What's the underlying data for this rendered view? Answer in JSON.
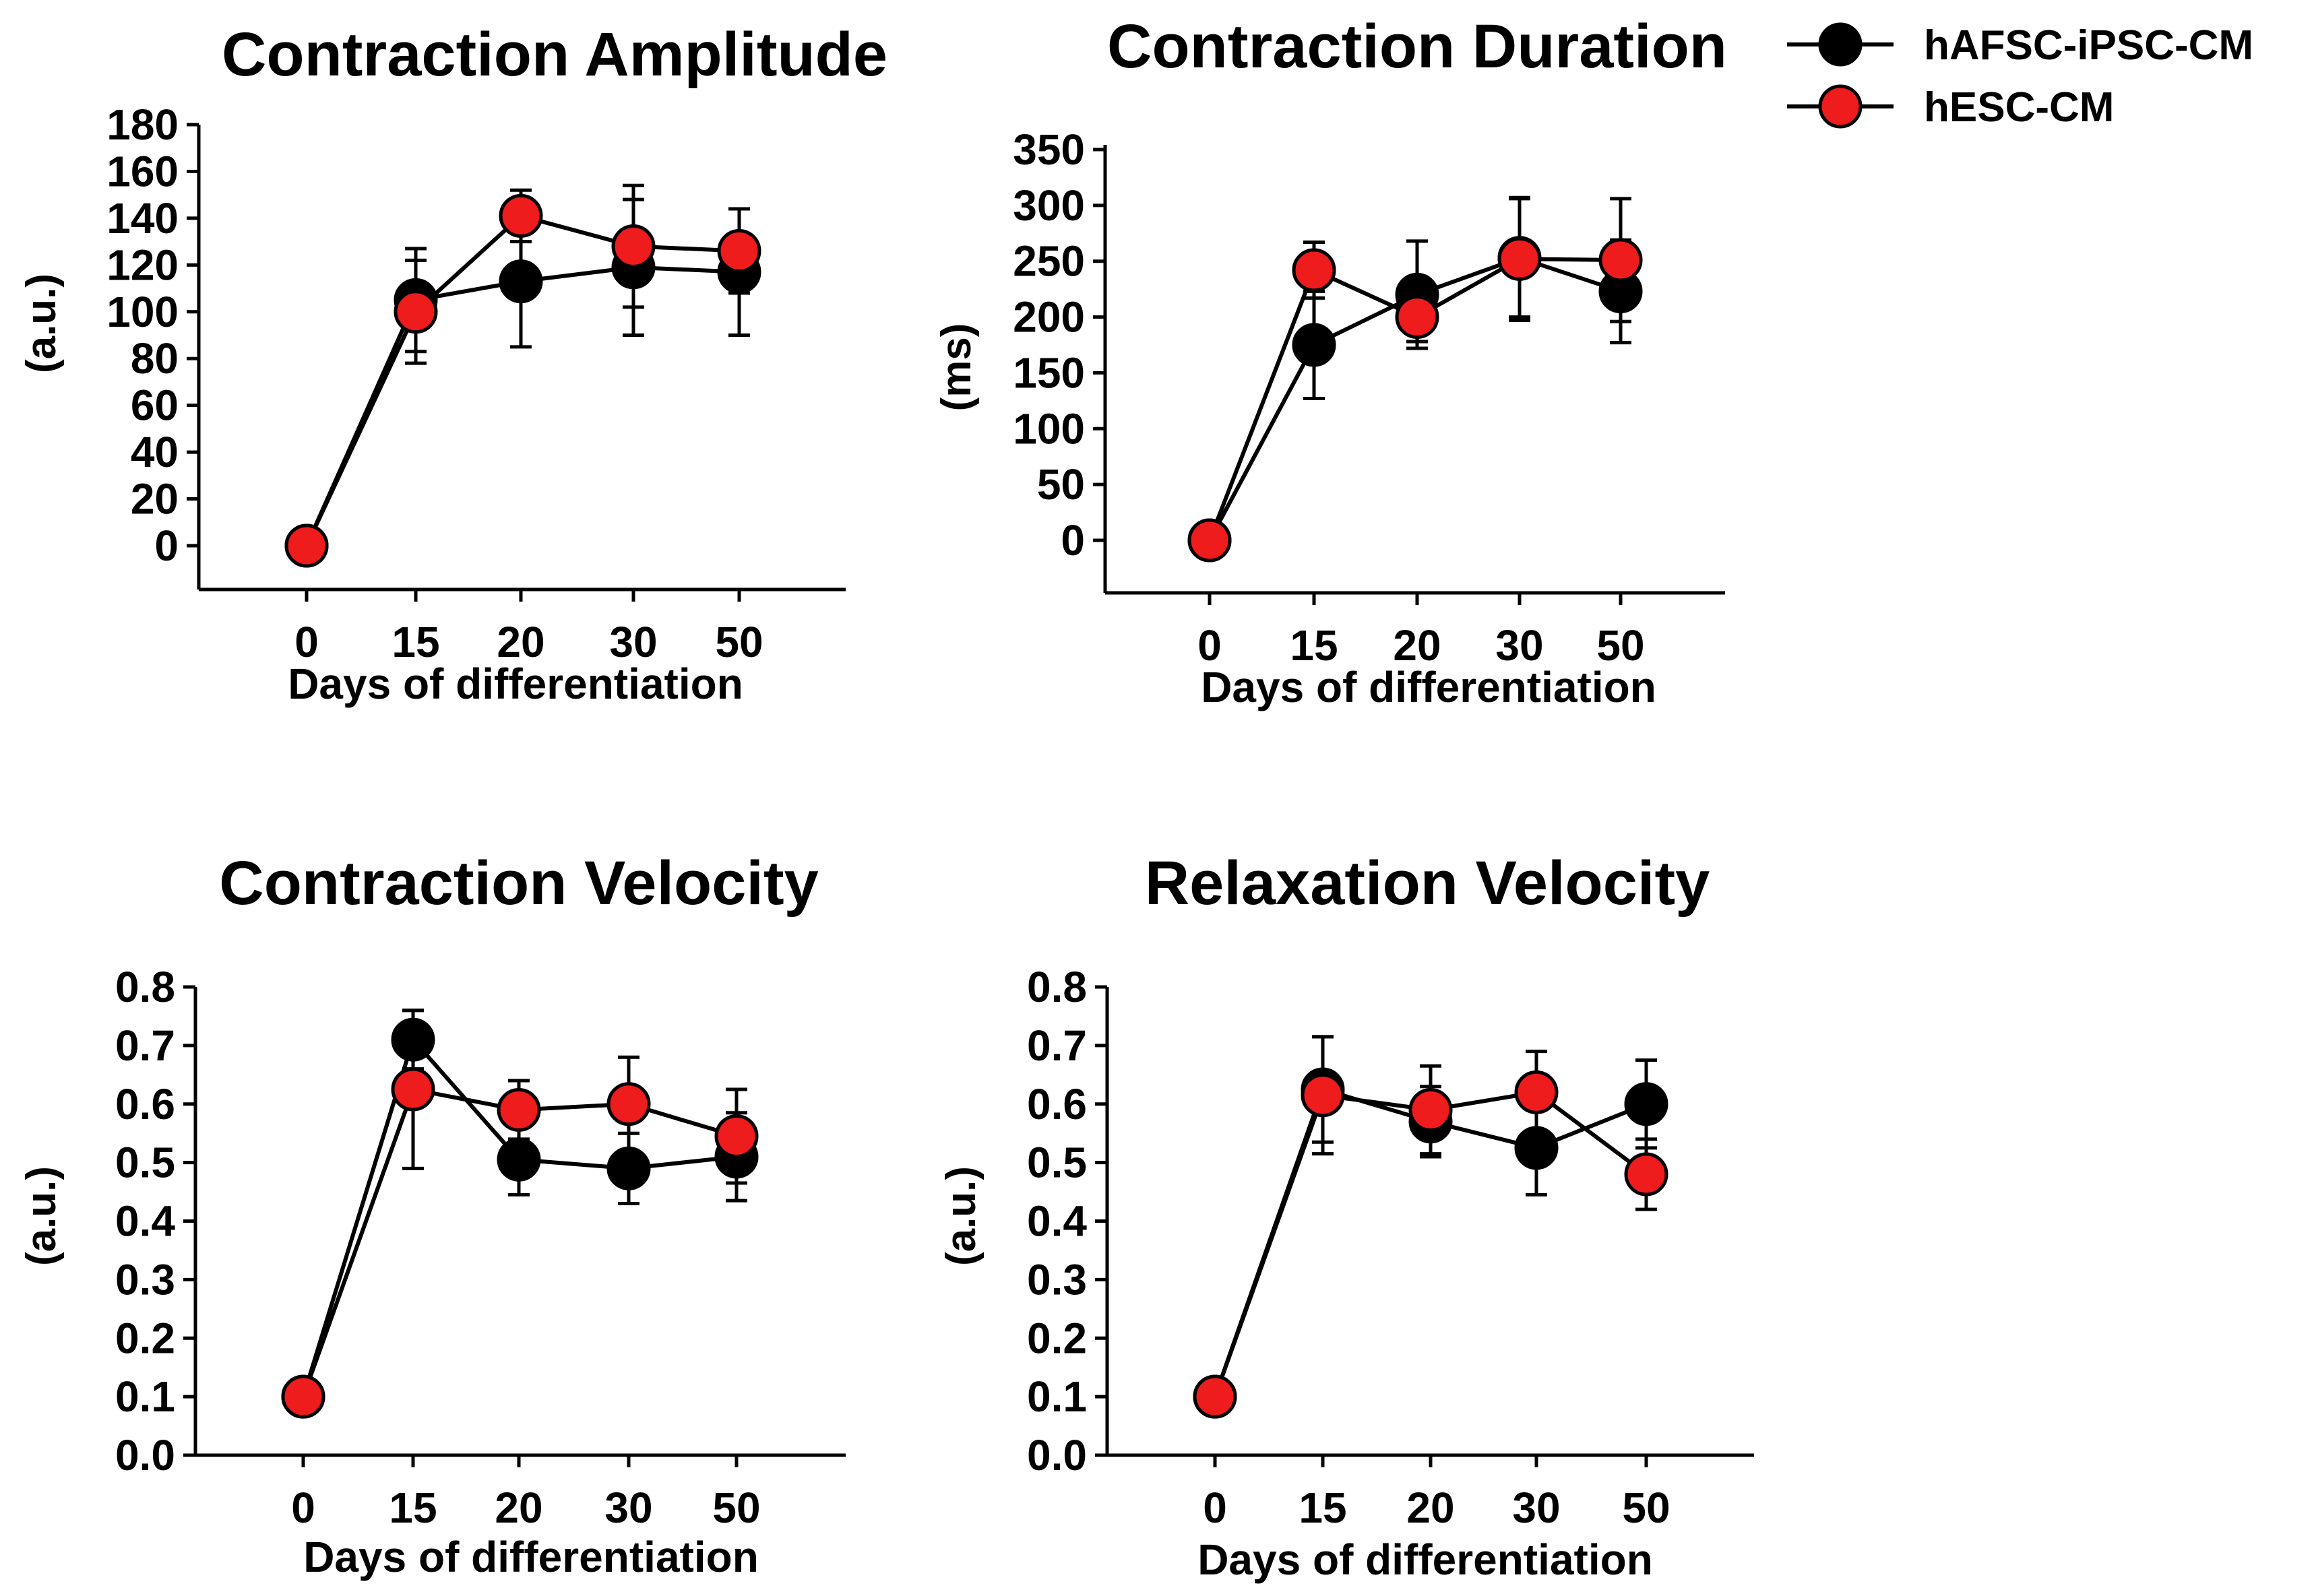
{
  "legend": {
    "items": [
      {
        "name": "hAFSC-iPSC-CM",
        "color": "#000000"
      },
      {
        "name": "hESC-CM",
        "color": "#ee1c1c"
      }
    ]
  },
  "chart_data": [
    {
      "type": "line",
      "title": "Contraction Amplitude",
      "xlabel": "Days of differentiation",
      "ylabel": "(a.u.)",
      "categories": [
        "0",
        "15",
        "20",
        "30",
        "50"
      ],
      "ylim": [
        -20,
        180
      ],
      "yticks": [
        0,
        20,
        40,
        60,
        80,
        100,
        120,
        140,
        160,
        180
      ],
      "ytick_labels": [
        "0",
        "20",
        "40",
        "60",
        "80",
        "100",
        "120",
        "140",
        "160",
        "180"
      ],
      "series": [
        {
          "name": "hAFSC-iPSC-CM",
          "values": [
            0,
            105,
            113,
            119,
            117
          ],
          "errors": [
            0,
            22,
            28,
            29,
            27
          ]
        },
        {
          "name": "hESC-CM",
          "values": [
            0,
            100,
            141,
            128,
            126
          ],
          "errors": [
            0,
            22,
            11,
            26,
            18
          ]
        }
      ]
    },
    {
      "type": "line",
      "title": "Contraction Duration",
      "xlabel": "Days of differentiation",
      "ylabel": "(ms)",
      "categories": [
        "0",
        "15",
        "20",
        "30",
        "50"
      ],
      "ylim": [
        -45,
        350
      ],
      "yticks": [
        0,
        50,
        100,
        150,
        200,
        250,
        300,
        350
      ],
      "ytick_labels": [
        "0",
        "50",
        "100",
        "150",
        "200",
        "250",
        "300",
        "350"
      ],
      "series": [
        {
          "name": "hAFSC-iPSC-CM",
          "values": [
            0,
            175,
            220,
            253,
            223
          ],
          "errors": [
            0,
            48,
            48,
            53,
            46
          ]
        },
        {
          "name": "hESC-CM",
          "values": [
            0,
            242,
            200,
            252,
            251
          ],
          "errors": [
            0,
            25,
            22,
            55,
            55
          ]
        }
      ]
    },
    {
      "type": "line",
      "title": "Contraction Velocity",
      "xlabel": "Days of differentiation",
      "ylabel": "(a.u.)",
      "categories": [
        "0",
        "15",
        "20",
        "30",
        "50"
      ],
      "ylim": [
        0.0,
        0.8
      ],
      "yticks": [
        0.0,
        0.1,
        0.2,
        0.3,
        0.4,
        0.5,
        0.6,
        0.7,
        0.8
      ],
      "ytick_labels": [
        "0.0",
        "0.1",
        "0.2",
        "0.3",
        "0.4",
        "0.5",
        "0.6",
        "0.7",
        "0.8"
      ],
      "series": [
        {
          "name": "hAFSC-iPSC-CM",
          "values": [
            0.1,
            0.71,
            0.505,
            0.49,
            0.51
          ],
          "errors": [
            0,
            0.05,
            0.06,
            0.06,
            0.075
          ]
        },
        {
          "name": "hESC-CM",
          "values": [
            0.1,
            0.625,
            0.59,
            0.6,
            0.545
          ],
          "errors": [
            0,
            0.135,
            0.05,
            0.08,
            0.08
          ]
        }
      ]
    },
    {
      "type": "line",
      "title": "Relaxation Velocity",
      "xlabel": "Days of differentiation",
      "ylabel": "(a.u.)",
      "categories": [
        "0",
        "15",
        "20",
        "30",
        "50"
      ],
      "ylim": [
        0.0,
        0.8
      ],
      "yticks": [
        0.0,
        0.1,
        0.2,
        0.3,
        0.4,
        0.5,
        0.6,
        0.7,
        0.8
      ],
      "ytick_labels": [
        "0.0",
        "0.1",
        "0.2",
        "0.3",
        "0.4",
        "0.5",
        "0.6",
        "0.7",
        "0.8"
      ],
      "series": [
        {
          "name": "hAFSC-iPSC-CM",
          "values": [
            0.1,
            0.625,
            0.57,
            0.525,
            0.6
          ],
          "errors": [
            0,
            0.09,
            0.06,
            0.08,
            0.075
          ]
        },
        {
          "name": "hESC-CM",
          "values": [
            0.1,
            0.615,
            0.59,
            0.62,
            0.48
          ],
          "errors": [
            0,
            0.1,
            0.075,
            0.07,
            0.06
          ]
        }
      ]
    }
  ]
}
